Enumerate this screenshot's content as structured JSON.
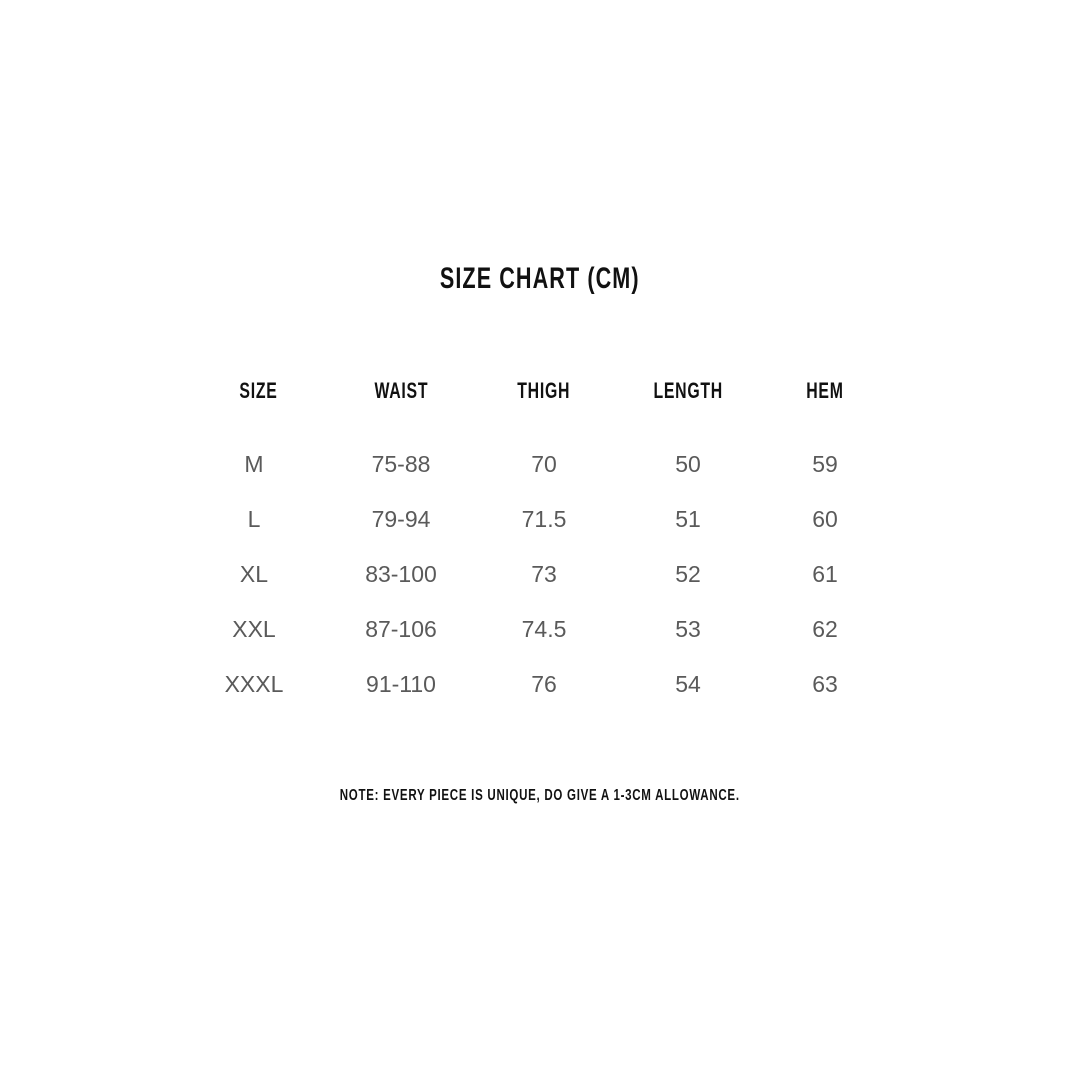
{
  "title": "SIZE CHART (CM)",
  "table": {
    "headers": [
      "SIZE",
      "WAIST",
      "THIGH",
      "LENGTH",
      "HEM"
    ],
    "rows": [
      [
        "M",
        "75-88",
        "70",
        "50",
        "59"
      ],
      [
        "L",
        "79-94",
        "71.5",
        "51",
        "60"
      ],
      [
        "XL",
        "83-100",
        "73",
        "52",
        "61"
      ],
      [
        "XXL",
        "87-106",
        "74.5",
        "53",
        "62"
      ],
      [
        "XXXL",
        "91-110",
        "76",
        "54",
        "63"
      ]
    ]
  },
  "note": "NOTE: EVERY PIECE IS UNIQUE, DO GIVE A 1-3CM ALLOWANCE."
}
